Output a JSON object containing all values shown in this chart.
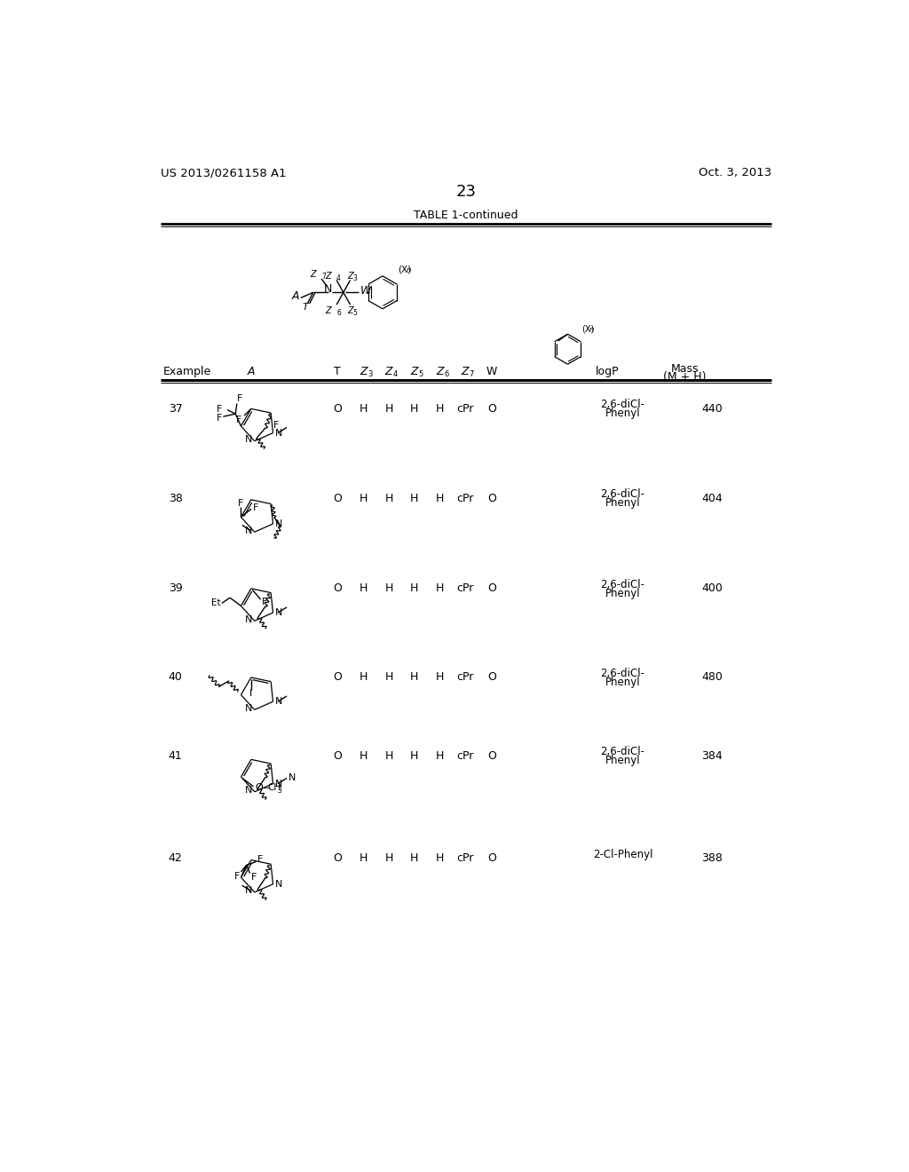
{
  "page_header_left": "US 2013/0261158 A1",
  "page_header_right": "Oct. 3, 2013",
  "page_number": "23",
  "table_title": "TABLE 1-continued",
  "rows": [
    {
      "example": "37",
      "T": "O",
      "Z3": "H",
      "Z4": "H",
      "Z5": "H",
      "Z6": "H",
      "Z7": "cPr",
      "W": "O",
      "substituent": "2,6-diCl-\nPhenyl",
      "mass": "440"
    },
    {
      "example": "38",
      "T": "O",
      "Z3": "H",
      "Z4": "H",
      "Z5": "H",
      "Z6": "H",
      "Z7": "cPr",
      "W": "O",
      "substituent": "2,6-diCl-\nPhenyl",
      "mass": "404"
    },
    {
      "example": "39",
      "T": "O",
      "Z3": "H",
      "Z4": "H",
      "Z5": "H",
      "Z6": "H",
      "Z7": "cPr",
      "W": "O",
      "substituent": "2,6-diCl-\nPhenyl",
      "mass": "400"
    },
    {
      "example": "40",
      "T": "O",
      "Z3": "H",
      "Z4": "H",
      "Z5": "H",
      "Z6": "H",
      "Z7": "cPr",
      "W": "O",
      "substituent": "2,6-diCl-\nPhenyl",
      "mass": "480"
    },
    {
      "example": "41",
      "T": "O",
      "Z3": "H",
      "Z4": "H",
      "Z5": "H",
      "Z6": "H",
      "Z7": "cPr",
      "W": "O",
      "substituent": "2,6-diCl-\nPhenyl",
      "mass": "384"
    },
    {
      "example": "42",
      "T": "O",
      "Z3": "H",
      "Z4": "H",
      "Z5": "H",
      "Z6": "H",
      "Z7": "cPr",
      "W": "O",
      "substituent": "2-Cl-Phenyl",
      "mass": "388"
    }
  ]
}
